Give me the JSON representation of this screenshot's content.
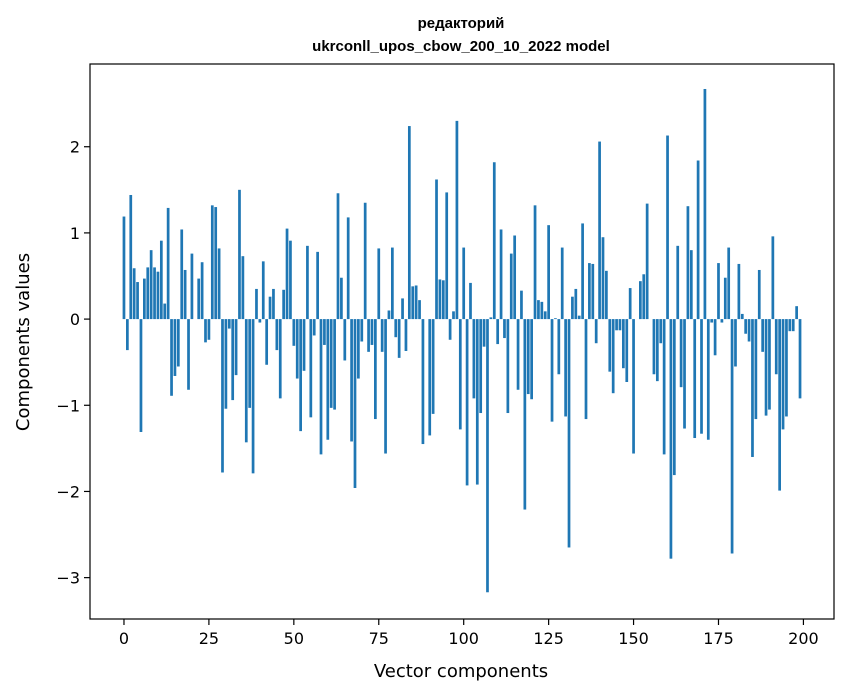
{
  "chart_data": {
    "type": "bar",
    "title_line1": "редакторий",
    "title_line2": "ukrconll_upos_cbow_200_10_2022 model",
    "xlabel": "Vector components",
    "ylabel": "Components values",
    "xlim": [
      -10,
      209
    ],
    "ylim": [
      -3.48,
      2.96
    ],
    "xticks": [
      0,
      25,
      50,
      75,
      100,
      125,
      150,
      175,
      200
    ],
    "xtick_labels": [
      "0",
      "25",
      "50",
      "75",
      "100",
      "125",
      "150",
      "175",
      "200"
    ],
    "yticks": [
      -3,
      -2,
      -1,
      0,
      1,
      2
    ],
    "ytick_labels": [
      "−3",
      "−2",
      "−1",
      "0",
      "1",
      "2"
    ],
    "bar_color": "#1f77b4",
    "values": [
      1.19,
      -0.36,
      1.44,
      0.59,
      0.43,
      -1.31,
      0.47,
      0.6,
      0.8,
      0.6,
      0.55,
      0.91,
      0.18,
      1.29,
      -0.89,
      -0.66,
      -0.55,
      1.04,
      0.57,
      -0.82,
      0.76,
      0.0,
      0.47,
      0.66,
      -0.27,
      -0.24,
      1.32,
      1.3,
      0.82,
      -1.78,
      -1.04,
      -0.11,
      -0.94,
      -0.65,
      1.5,
      0.73,
      -1.43,
      -1.03,
      -1.79,
      0.35,
      -0.04,
      0.67,
      -0.53,
      0.26,
      0.35,
      -0.36,
      -0.92,
      0.34,
      1.05,
      0.91,
      -0.31,
      -0.69,
      -1.3,
      -0.6,
      0.85,
      -1.14,
      -0.19,
      0.78,
      -1.57,
      -0.3,
      -1.4,
      -1.03,
      -1.05,
      1.46,
      0.48,
      -0.48,
      1.18,
      -1.42,
      -1.96,
      -0.69,
      -0.26,
      1.35,
      -0.38,
      -0.3,
      -1.16,
      0.82,
      -0.38,
      -1.56,
      0.1,
      0.83,
      -0.21,
      -0.45,
      0.24,
      -0.37,
      2.24,
      0.38,
      0.39,
      0.22,
      -1.45,
      0.0,
      -1.35,
      -1.1,
      1.62,
      0.46,
      0.45,
      1.47,
      -0.24,
      0.09,
      2.3,
      -1.28,
      0.83,
      -1.93,
      0.42,
      -0.92,
      -1.92,
      -1.09,
      -0.32,
      -3.17,
      0.02,
      1.82,
      -0.29,
      1.04,
      -0.22,
      -1.09,
      0.76,
      0.97,
      -0.82,
      0.33,
      -2.21,
      -0.87,
      -0.93,
      1.32,
      0.22,
      0.2,
      0.09,
      1.09,
      -1.19,
      0.01,
      -0.64,
      0.83,
      -1.13,
      -2.65,
      0.26,
      0.35,
      0.04,
      1.11,
      -1.16,
      0.65,
      0.64,
      -0.28,
      2.06,
      0.95,
      0.56,
      -0.61,
      -0.86,
      -0.13,
      -0.13,
      -0.57,
      -0.73,
      0.36,
      -1.56,
      0.0,
      0.44,
      0.52,
      1.34,
      0.0,
      -0.64,
      -0.72,
      -0.28,
      -1.57,
      2.13,
      -2.78,
      -1.81,
      0.85,
      -0.79,
      -1.27,
      1.31,
      0.8,
      -1.38,
      1.84,
      -1.33,
      2.67,
      -1.4,
      -0.04,
      -0.42,
      0.65,
      -0.04,
      0.48,
      0.83,
      -2.72,
      -0.55,
      0.64,
      0.06,
      -0.17,
      -0.26,
      -1.6,
      -1.16,
      0.57,
      -0.38,
      -1.12,
      -1.05,
      0.96,
      -0.64,
      -1.99,
      -1.28,
      -1.13,
      -0.14,
      -0.14,
      0.15,
      -0.92
    ]
  }
}
